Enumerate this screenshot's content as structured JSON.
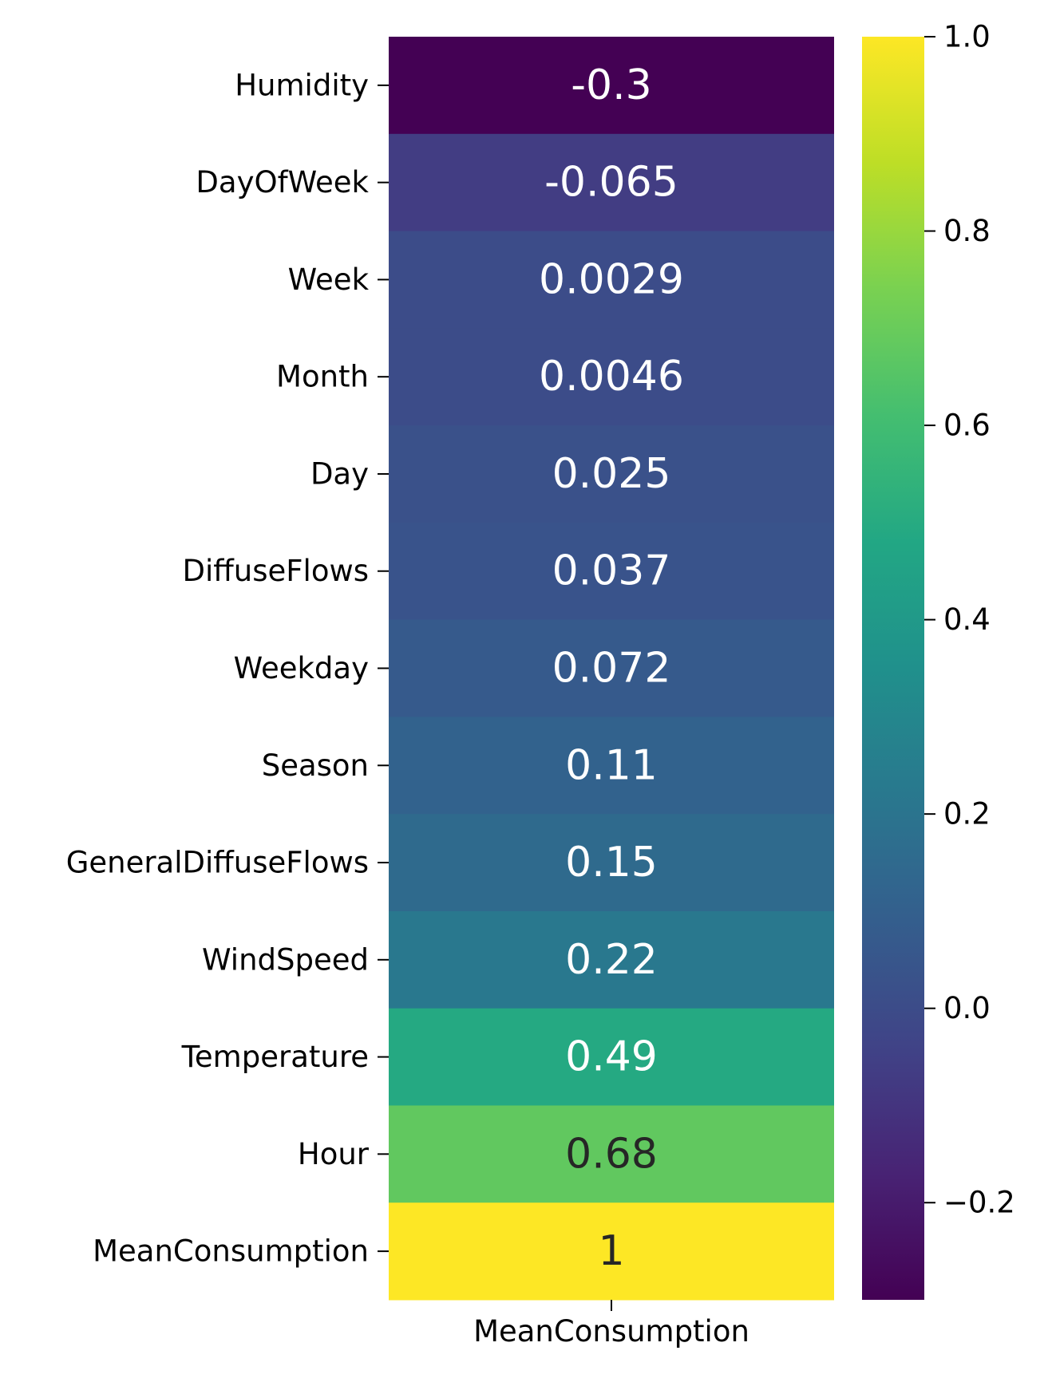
{
  "chart_data": {
    "type": "heatmap",
    "title": "",
    "xlabel": "",
    "ylabel": "",
    "columns": [
      "MeanConsumption"
    ],
    "rows": [
      {
        "label": "Humidity",
        "value": -0.3,
        "text": "-0.3"
      },
      {
        "label": "DayOfWeek",
        "value": -0.065,
        "text": "-0.065"
      },
      {
        "label": "Week",
        "value": 0.0029,
        "text": "0.0029"
      },
      {
        "label": "Month",
        "value": 0.0046,
        "text": "0.0046"
      },
      {
        "label": "Day",
        "value": 0.025,
        "text": "0.025"
      },
      {
        "label": "DiffuseFlows",
        "value": 0.037,
        "text": "0.037"
      },
      {
        "label": "Weekday",
        "value": 0.072,
        "text": "0.072"
      },
      {
        "label": "Season",
        "value": 0.11,
        "text": "0.11"
      },
      {
        "label": "GeneralDiffuseFlows",
        "value": 0.15,
        "text": "0.15"
      },
      {
        "label": "WindSpeed",
        "value": 0.22,
        "text": "0.22"
      },
      {
        "label": "Temperature",
        "value": 0.49,
        "text": "0.49"
      },
      {
        "label": "Hour",
        "value": 0.68,
        "text": "0.68"
      },
      {
        "label": "MeanConsumption",
        "value": 1,
        "text": "1"
      }
    ],
    "colormap": "viridis",
    "vmin": -0.3,
    "vmax": 1.0,
    "colorbar_ticks": [
      {
        "value": 1.0,
        "label": "1.0"
      },
      {
        "value": 0.8,
        "label": "0.8"
      },
      {
        "value": 0.6,
        "label": "0.6"
      },
      {
        "value": 0.4,
        "label": "0.4"
      },
      {
        "value": 0.2,
        "label": "0.2"
      },
      {
        "value": 0.0,
        "label": "0.0"
      },
      {
        "value": -0.2,
        "label": "−0.2"
      }
    ],
    "colors": {
      "annotation_light": "#ffffff",
      "annotation_dark": "#262626",
      "tick_text": "#000000"
    }
  }
}
